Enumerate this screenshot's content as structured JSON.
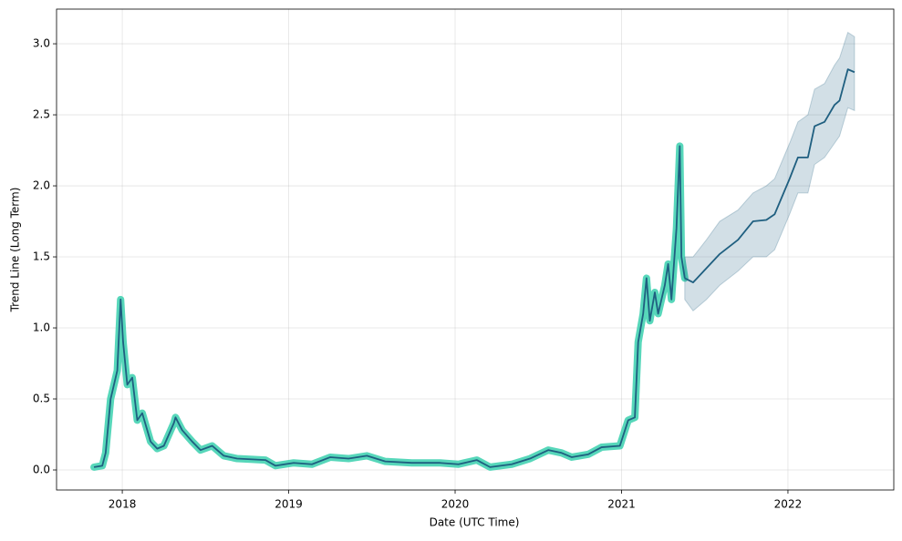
{
  "chart_data": {
    "type": "line",
    "x_label": "Date (UTC Time)",
    "y_label": "Trend Line (Long Term)",
    "xlim": [
      2017.605,
      2022.636
    ],
    "xticks": [
      2018,
      2019,
      2020,
      2021,
      2022
    ],
    "ylim": [
      -0.141,
      3.244
    ],
    "yticks": [
      {
        "value": 0,
        "label": "0.0"
      },
      0.5,
      {
        "value": 1,
        "label": "1.0"
      },
      1.5,
      {
        "value": 2,
        "label": "2.0"
      },
      2.5,
      {
        "value": 3,
        "label": "3.0"
      }
    ],
    "grid": true,
    "series": [
      {
        "color": "#1f5f80",
        "highlight_color": "#45d3b2",
        "x": [
          2017.83,
          2017.88,
          2017.9,
          2017.93,
          2017.97,
          2017.99,
          2018.005,
          2018.03,
          2018.06,
          2018.09,
          2018.12,
          2018.17,
          2018.21,
          2018.25,
          2018.31,
          2018.32,
          2018.36,
          2018.42,
          2018.47,
          2018.54,
          2018.61,
          2018.69,
          2018.86,
          2018.92,
          2019.03,
          2019.14,
          2019.25,
          2019.36,
          2019.47,
          2019.58,
          2019.74,
          2019.91,
          2020.02,
          2020.13,
          2020.21,
          2020.34,
          2020.45,
          2020.56,
          2020.64,
          2020.7,
          2020.8,
          2020.88,
          2020.99,
          2021.04,
          2021.08,
          2021.1,
          2021.13,
          2021.15,
          2021.17,
          2021.2,
          2021.22,
          2021.26,
          2021.28,
          2021.3,
          2021.33,
          2021.35,
          2021.36,
          2021.38
        ],
        "values": [
          0.02,
          0.03,
          0.12,
          0.5,
          0.7,
          1.2,
          0.9,
          0.6,
          0.65,
          0.35,
          0.4,
          0.2,
          0.15,
          0.17,
          0.33,
          0.37,
          0.28,
          0.2,
          0.14,
          0.17,
          0.1,
          0.08,
          0.07,
          0.03,
          0.05,
          0.04,
          0.09,
          0.08,
          0.1,
          0.06,
          0.05,
          0.05,
          0.04,
          0.07,
          0.02,
          0.04,
          0.08,
          0.14,
          0.12,
          0.09,
          0.11,
          0.16,
          0.17,
          0.35,
          0.37,
          0.9,
          1.1,
          1.35,
          1.05,
          1.25,
          1.1,
          1.3,
          1.45,
          1.2,
          1.7,
          2.28,
          1.5,
          1.35
        ]
      },
      {
        "color": "#1f5f80",
        "band_color": "#1f5f80",
        "x": [
          2021.38,
          2021.43,
          2021.51,
          2021.59,
          2021.7,
          2021.79,
          2021.87,
          2021.92,
          2022.01,
          2022.06,
          2022.12,
          2022.16,
          2022.22,
          2022.28,
          2022.31,
          2022.36,
          2022.4
        ],
        "values": [
          1.35,
          1.32,
          1.42,
          1.52,
          1.62,
          1.75,
          1.76,
          1.8,
          2.05,
          2.2,
          2.2,
          2.42,
          2.45,
          2.57,
          2.6,
          2.82,
          2.8
        ],
        "upper": [
          1.5,
          1.5,
          1.62,
          1.75,
          1.83,
          1.95,
          2.0,
          2.05,
          2.3,
          2.45,
          2.5,
          2.68,
          2.72,
          2.85,
          2.9,
          3.08,
          3.05
        ],
        "lower": [
          1.2,
          1.12,
          1.2,
          1.3,
          1.4,
          1.5,
          1.5,
          1.55,
          1.8,
          1.95,
          1.95,
          2.15,
          2.2,
          2.3,
          2.35,
          2.55,
          2.53
        ]
      }
    ]
  }
}
